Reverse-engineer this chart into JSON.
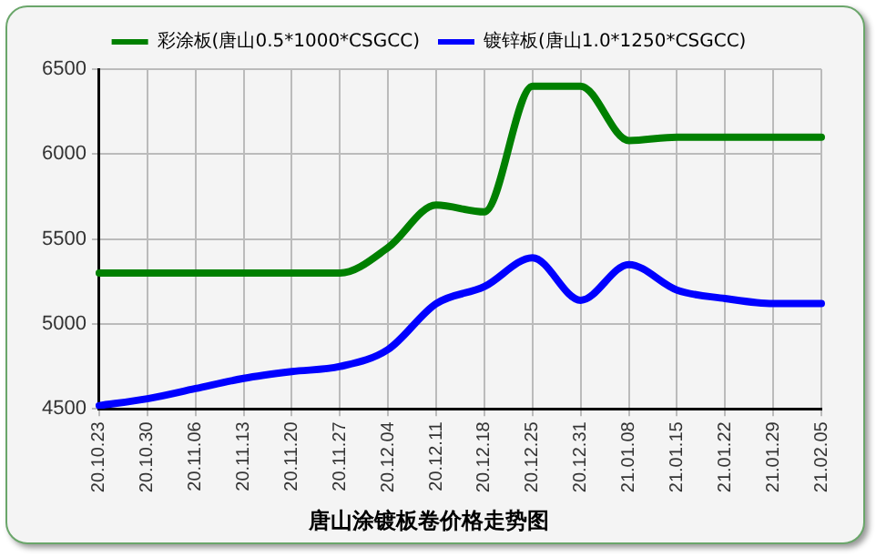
{
  "chart_data": {
    "type": "line",
    "title": "唐山涂镀板卷价格走势图",
    "categories": [
      "20.10.23",
      "20.10.30",
      "20.11.06",
      "20.11.13",
      "20.11.20",
      "20.11.27",
      "20.12.04",
      "20.12.11",
      "20.12.18",
      "20.12.25",
      "20.12.31",
      "21.01.08",
      "21.01.15",
      "21.01.22",
      "21.01.29",
      "21.02.05"
    ],
    "series": [
      {
        "name": "彩涂板(唐山0.5*1000*CSGCC)",
        "color": "#008000",
        "values": [
          5300,
          5300,
          5300,
          5300,
          5300,
          5300,
          5450,
          5700,
          5660,
          6400,
          6400,
          6080,
          6100,
          6100,
          6100,
          6100
        ]
      },
      {
        "name": "镀锌板(唐山1.0*1250*CSGCC)",
        "color": "#0000ff",
        "values": [
          4520,
          4560,
          4620,
          4680,
          4720,
          4750,
          4850,
          5120,
          5220,
          5390,
          5140,
          5350,
          5200,
          5150,
          5120,
          5120
        ]
      }
    ],
    "ylim": [
      4500,
      6500
    ],
    "yticks": [
      4500,
      5000,
      5500,
      6000,
      6500
    ],
    "grid": true,
    "legend": "top",
    "marker": "none",
    "line_style": "solid"
  }
}
